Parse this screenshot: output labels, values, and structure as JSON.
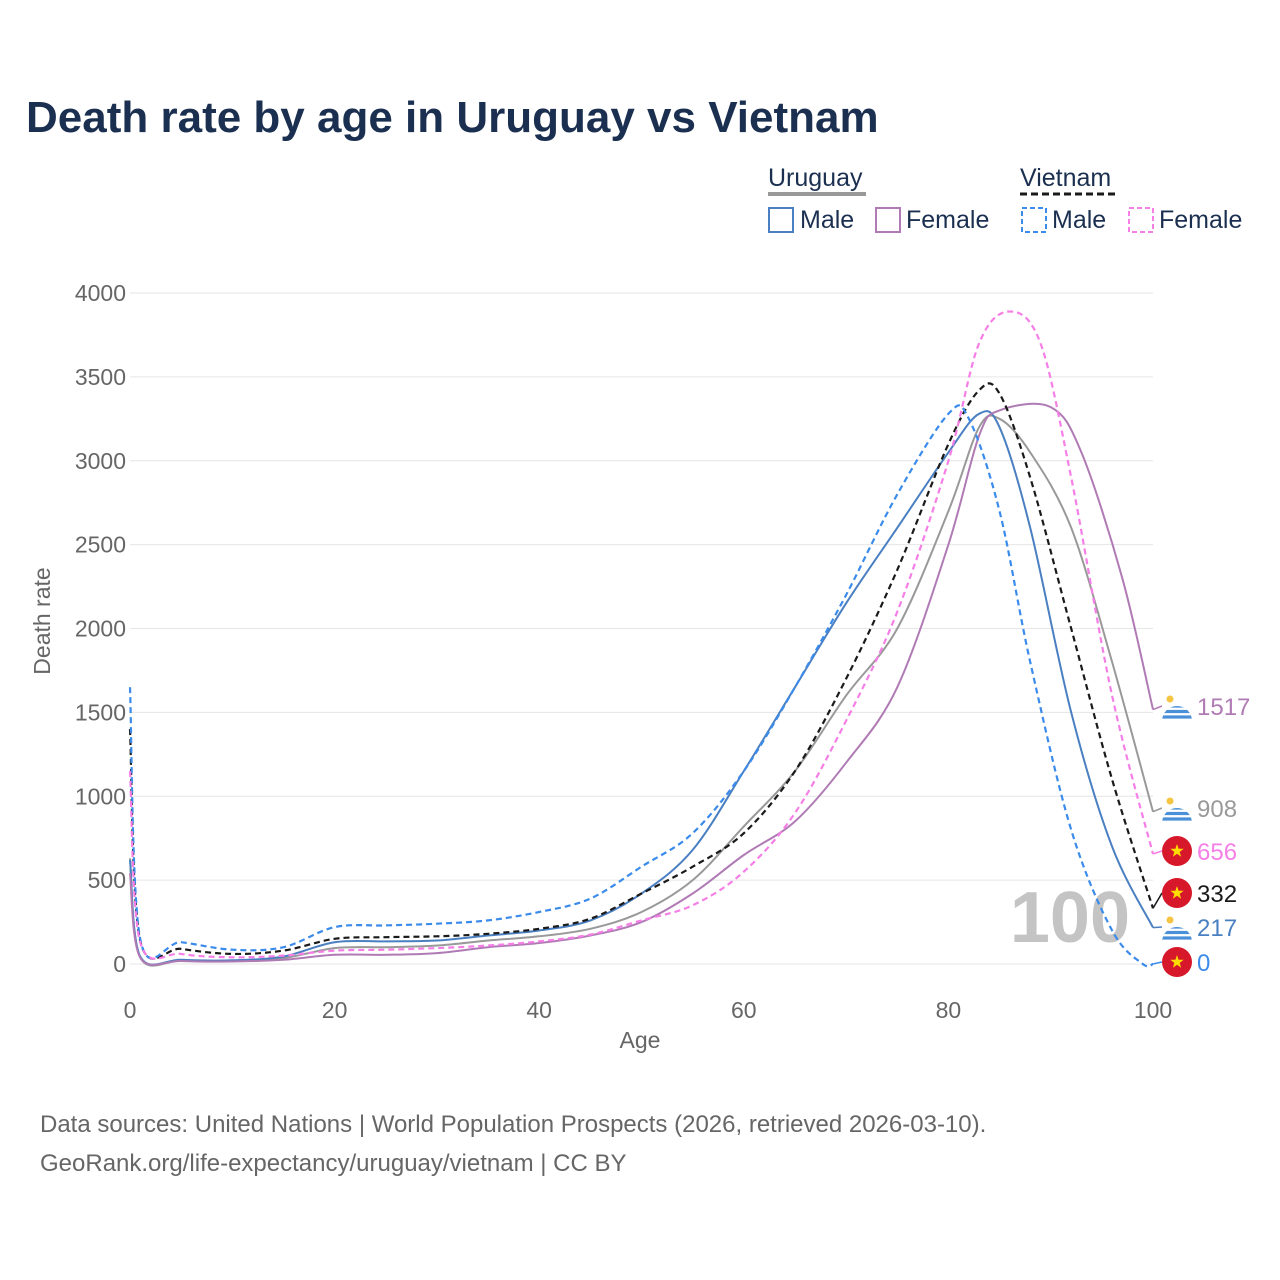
{
  "title": "Death rate by age in Uruguay vs Vietnam",
  "legend": {
    "groups": [
      {
        "name": "Uruguay",
        "style": "solid",
        "entries": [
          {
            "label": "Male",
            "color": "#4a7fc1"
          },
          {
            "label": "Female",
            "color": "#b07bb5"
          }
        ]
      },
      {
        "name": "Vietnam",
        "style": "dashed",
        "entries": [
          {
            "label": "Male",
            "color": "#3b8beb"
          },
          {
            "label": "Female",
            "color": "#f57fe6"
          }
        ]
      }
    ]
  },
  "watermark": "100",
  "source_lines": [
    "Data sources: United Nations | World Population Prospects (2026, retrieved 2026-03-10).",
    "GeoRank.org/life-expectancy/uruguay/vietnam | CC BY"
  ],
  "chart_data": {
    "type": "line",
    "title": "Death rate by age in Uruguay vs Vietnam",
    "xlabel": "Age",
    "ylabel": "Death rate",
    "xlim": [
      0,
      100
    ],
    "ylim": [
      0,
      4000
    ],
    "xticks": [
      0,
      20,
      40,
      60,
      80,
      100
    ],
    "yticks": [
      0,
      500,
      1000,
      1500,
      2000,
      2500,
      3000,
      3500,
      4000
    ],
    "series": [
      {
        "name": "Uruguay Total",
        "country": "Uruguay",
        "color": "#999999",
        "dash": false,
        "flag": "uruguay",
        "end_label": "908",
        "points": [
          [
            0,
            630
          ],
          [
            1,
            40
          ],
          [
            5,
            20
          ],
          [
            10,
            18
          ],
          [
            15,
            35
          ],
          [
            20,
            95
          ],
          [
            25,
            100
          ],
          [
            30,
            110
          ],
          [
            35,
            140
          ],
          [
            40,
            165
          ],
          [
            45,
            210
          ],
          [
            50,
            310
          ],
          [
            55,
            500
          ],
          [
            60,
            820
          ],
          [
            65,
            1150
          ],
          [
            70,
            1600
          ],
          [
            75,
            2000
          ],
          [
            80,
            2700
          ],
          [
            83,
            3200
          ],
          [
            85,
            3250
          ],
          [
            88,
            3050
          ],
          [
            92,
            2600
          ],
          [
            96,
            1800
          ],
          [
            100,
            908
          ]
        ]
      },
      {
        "name": "Uruguay Male",
        "country": "Uruguay",
        "color": "#4a7fc1",
        "dash": false,
        "flag": "uruguay",
        "end_label": "217",
        "points": [
          [
            0,
            620
          ],
          [
            1,
            45
          ],
          [
            5,
            25
          ],
          [
            10,
            22
          ],
          [
            15,
            45
          ],
          [
            20,
            130
          ],
          [
            25,
            135
          ],
          [
            30,
            140
          ],
          [
            35,
            170
          ],
          [
            40,
            200
          ],
          [
            45,
            260
          ],
          [
            50,
            420
          ],
          [
            55,
            680
          ],
          [
            60,
            1150
          ],
          [
            65,
            1650
          ],
          [
            70,
            2150
          ],
          [
            75,
            2600
          ],
          [
            80,
            3050
          ],
          [
            83,
            3280
          ],
          [
            85,
            3200
          ],
          [
            88,
            2600
          ],
          [
            92,
            1500
          ],
          [
            96,
            700
          ],
          [
            100,
            217
          ]
        ]
      },
      {
        "name": "Uruguay Female",
        "country": "Uruguay",
        "color": "#b07bb5",
        "dash": false,
        "flag": "uruguay",
        "end_label": "1517",
        "points": [
          [
            0,
            540
          ],
          [
            1,
            38
          ],
          [
            5,
            18
          ],
          [
            10,
            15
          ],
          [
            15,
            25
          ],
          [
            20,
            55
          ],
          [
            25,
            55
          ],
          [
            30,
            65
          ],
          [
            35,
            100
          ],
          [
            40,
            125
          ],
          [
            45,
            170
          ],
          [
            50,
            250
          ],
          [
            55,
            420
          ],
          [
            60,
            650
          ],
          [
            65,
            850
          ],
          [
            70,
            1200
          ],
          [
            75,
            1650
          ],
          [
            80,
            2500
          ],
          [
            83,
            3150
          ],
          [
            85,
            3300
          ],
          [
            90,
            3320
          ],
          [
            93,
            3050
          ],
          [
            97,
            2300
          ],
          [
            100,
            1517
          ]
        ]
      },
      {
        "name": "Vietnam Total",
        "country": "Vietnam",
        "color": "#1a1a1a",
        "dash": true,
        "flag": "vietnam",
        "end_label": "332",
        "points": [
          [
            0,
            1400
          ],
          [
            1,
            140
          ],
          [
            5,
            90
          ],
          [
            10,
            60
          ],
          [
            15,
            80
          ],
          [
            20,
            150
          ],
          [
            25,
            160
          ],
          [
            30,
            165
          ],
          [
            35,
            180
          ],
          [
            40,
            210
          ],
          [
            45,
            270
          ],
          [
            50,
            420
          ],
          [
            55,
            580
          ],
          [
            60,
            780
          ],
          [
            65,
            1150
          ],
          [
            70,
            1700
          ],
          [
            75,
            2350
          ],
          [
            80,
            3100
          ],
          [
            83,
            3420
          ],
          [
            85,
            3400
          ],
          [
            88,
            2900
          ],
          [
            92,
            2000
          ],
          [
            96,
            1100
          ],
          [
            100,
            332
          ]
        ]
      },
      {
        "name": "Vietnam Male",
        "country": "Vietnam",
        "color": "#3b8beb",
        "dash": true,
        "flag": "vietnam",
        "end_label": "0",
        "points": [
          [
            0,
            1650
          ],
          [
            1,
            150
          ],
          [
            5,
            130
          ],
          [
            10,
            85
          ],
          [
            15,
            100
          ],
          [
            20,
            220
          ],
          [
            25,
            230
          ],
          [
            30,
            240
          ],
          [
            35,
            260
          ],
          [
            40,
            310
          ],
          [
            45,
            390
          ],
          [
            50,
            580
          ],
          [
            55,
            780
          ],
          [
            60,
            1150
          ],
          [
            65,
            1650
          ],
          [
            70,
            2200
          ],
          [
            75,
            2800
          ],
          [
            80,
            3280
          ],
          [
            82,
            3250
          ],
          [
            85,
            2700
          ],
          [
            88,
            1800
          ],
          [
            92,
            800
          ],
          [
            96,
            200
          ],
          [
            99,
            0
          ],
          [
            100,
            0
          ]
        ]
      },
      {
        "name": "Vietnam Female",
        "country": "Vietnam",
        "color": "#f57fe6",
        "dash": true,
        "flag": "vietnam",
        "end_label": "656",
        "points": [
          [
            0,
            1150
          ],
          [
            1,
            130
          ],
          [
            5,
            60
          ],
          [
            10,
            40
          ],
          [
            15,
            50
          ],
          [
            20,
            80
          ],
          [
            25,
            85
          ],
          [
            30,
            95
          ],
          [
            35,
            110
          ],
          [
            40,
            135
          ],
          [
            45,
            175
          ],
          [
            50,
            260
          ],
          [
            55,
            350
          ],
          [
            60,
            550
          ],
          [
            65,
            900
          ],
          [
            70,
            1450
          ],
          [
            75,
            2100
          ],
          [
            80,
            3000
          ],
          [
            83,
            3700
          ],
          [
            86,
            3890
          ],
          [
            89,
            3700
          ],
          [
            92,
            2900
          ],
          [
            96,
            1600
          ],
          [
            100,
            656
          ]
        ]
      }
    ]
  }
}
